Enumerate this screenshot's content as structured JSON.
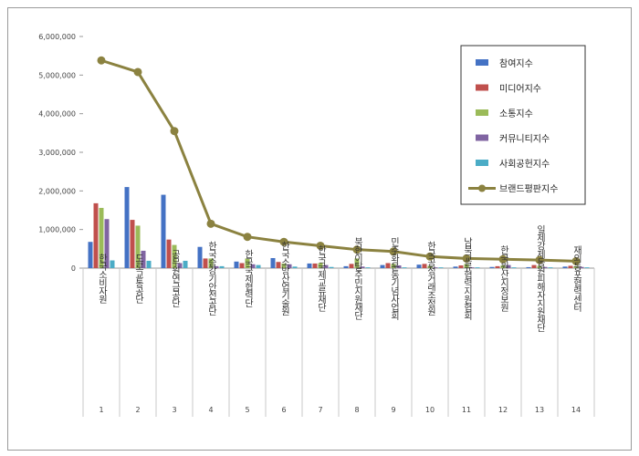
{
  "chart_data": {
    "type": "bar",
    "title": "",
    "xlabel": "",
    "ylabel": "",
    "ylim": [
      0,
      6000000
    ],
    "yticks": [
      "0",
      "1,000,000",
      "2,000,000",
      "3,000,000",
      "4,000,000",
      "5,000,000",
      "6,000,000"
    ],
    "grid": false,
    "legend_position": "top-right",
    "categories": [
      "한국소비자원",
      "도로교통공단",
      "공무원연금공단",
      "한국승강기안전공단",
      "한국국제협력단",
      "한국소방산업기술원",
      "한국국제교류재단",
      "북한이탈주민지원재단",
      "민주화운동기념사업회",
      "한국공정거래조정원",
      "남북교류협력지원협회",
      "한국원산지정보원",
      "일제강제동원피해자지원재단",
      "재외동포협력센터"
    ],
    "numbers": [
      "1",
      "2",
      "3",
      "4",
      "5",
      "6",
      "7",
      "8",
      "9",
      "10",
      "11",
      "12",
      "13",
      "14"
    ],
    "series": [
      {
        "name": "참여지수",
        "type": "bar",
        "color": "#4472c4",
        "values": [
          680000,
          2100000,
          1900000,
          550000,
          170000,
          260000,
          120000,
          50000,
          80000,
          90000,
          40000,
          30000,
          25000,
          40000
        ]
      },
      {
        "name": "미디어지수",
        "type": "bar",
        "color": "#c0504d",
        "values": [
          1680000,
          1250000,
          740000,
          250000,
          130000,
          160000,
          120000,
          110000,
          130000,
          110000,
          70000,
          50000,
          80000,
          60000
        ]
      },
      {
        "name": "소통지수",
        "type": "bar",
        "color": "#9bbb59",
        "values": [
          1560000,
          1100000,
          600000,
          250000,
          250000,
          120000,
          130000,
          250000,
          110000,
          60000,
          110000,
          70000,
          60000,
          50000
        ]
      },
      {
        "name": "커뮤니티지수",
        "type": "bar",
        "color": "#8064a2",
        "values": [
          1270000,
          450000,
          130000,
          50000,
          100000,
          100000,
          80000,
          40000,
          70000,
          20000,
          20000,
          80000,
          30000,
          30000
        ]
      },
      {
        "name": "사회공헌지수",
        "type": "bar",
        "color": "#4bacc6",
        "values": [
          200000,
          190000,
          190000,
          50000,
          80000,
          40000,
          30000,
          20000,
          20000,
          20000,
          20000,
          20000,
          20000,
          20000
        ]
      },
      {
        "name": "브랜드평판지수",
        "type": "line",
        "color": "#8b8240",
        "values": [
          5380000,
          5080000,
          3550000,
          1150000,
          810000,
          680000,
          580000,
          480000,
          430000,
          300000,
          250000,
          230000,
          210000,
          180000
        ]
      }
    ]
  }
}
